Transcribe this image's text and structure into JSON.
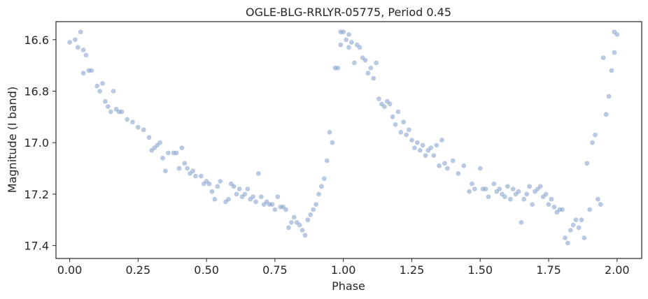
{
  "chart_data": {
    "type": "scatter",
    "title": "OGLE-BLG-RRLYR-05775, Period 0.45",
    "xlabel": "Phase",
    "ylabel": "Magnitude (I band)",
    "xlim": [
      -0.05,
      2.09
    ],
    "ylim": [
      17.45,
      16.53
    ],
    "y_inverted": true,
    "xticks": [
      0.0,
      0.25,
      0.5,
      0.75,
      1.0,
      1.25,
      1.5,
      1.75,
      2.0
    ],
    "xtick_labels": [
      "0.00",
      "0.25",
      "0.50",
      "0.75",
      "1.00",
      "1.25",
      "1.50",
      "1.75",
      "2.00"
    ],
    "yticks": [
      16.6,
      16.8,
      17.0,
      17.2,
      17.4
    ],
    "ytick_labels": [
      "16.6",
      "16.8",
      "17.0",
      "17.2",
      "17.4"
    ],
    "grid": false,
    "marker_color": "#7f9dc9",
    "marker_opacity": 0.55,
    "series": [
      {
        "x": [
          0.0,
          0.02,
          0.03,
          0.04,
          0.05,
          0.05,
          0.06,
          0.07,
          0.08,
          0.1,
          0.11,
          0.12,
          0.13,
          0.14,
          0.15,
          0.16,
          0.17,
          0.18,
          0.19,
          0.21,
          0.23,
          0.25,
          0.27,
          0.29,
          0.3,
          0.31,
          0.32,
          0.33,
          0.34,
          0.35,
          0.36,
          0.38,
          0.39,
          0.4,
          0.41,
          0.42,
          0.43,
          0.44,
          0.45,
          0.46,
          0.48,
          0.49,
          0.5,
          0.51,
          0.52,
          0.53,
          0.54,
          0.55,
          0.57,
          0.58,
          0.59,
          0.6,
          0.61,
          0.62,
          0.63,
          0.64,
          0.65,
          0.66,
          0.67,
          0.68,
          0.69,
          0.7,
          0.71,
          0.72,
          0.73,
          0.74,
          0.75,
          0.76,
          0.77,
          0.78,
          0.79,
          0.8,
          0.81,
          0.82,
          0.83,
          0.84,
          0.85,
          0.86,
          0.87,
          0.88,
          0.89,
          0.9,
          0.91,
          0.92,
          0.93,
          0.94,
          0.95,
          0.96,
          0.97,
          0.98,
          0.99,
          0.99
        ],
        "y": [
          16.61,
          16.6,
          16.63,
          16.57,
          16.64,
          16.73,
          16.66,
          16.72,
          16.72,
          16.78,
          16.8,
          16.77,
          16.84,
          16.86,
          16.88,
          16.8,
          16.87,
          16.88,
          16.88,
          16.91,
          16.92,
          16.94,
          16.95,
          16.98,
          17.03,
          17.02,
          17.01,
          17.0,
          17.06,
          17.11,
          17.04,
          17.04,
          17.04,
          17.1,
          17.02,
          17.08,
          17.1,
          17.12,
          17.11,
          17.13,
          17.13,
          17.16,
          17.15,
          17.16,
          17.19,
          17.22,
          17.17,
          17.15,
          17.23,
          17.22,
          17.16,
          17.17,
          17.2,
          17.18,
          17.21,
          17.2,
          17.18,
          17.22,
          17.21,
          17.23,
          17.12,
          17.21,
          17.24,
          17.23,
          17.24,
          17.24,
          17.26,
          17.21,
          17.25,
          17.25,
          17.26,
          17.33,
          17.31,
          17.29,
          17.31,
          17.32,
          17.34,
          17.36,
          17.3,
          17.28,
          17.26,
          17.24,
          17.2,
          17.17,
          17.14,
          17.07,
          16.96,
          17.0,
          16.71,
          16.71,
          16.62,
          16.57
        ]
      },
      {
        "x": [
          1.0,
          1.01,
          1.02,
          1.02,
          1.03,
          1.04,
          1.05,
          1.06,
          1.07,
          1.08,
          1.09,
          1.1,
          1.11,
          1.12,
          1.13,
          1.14,
          1.15,
          1.16,
          1.17,
          1.18,
          1.19,
          1.2,
          1.21,
          1.22,
          1.23,
          1.24,
          1.25,
          1.26,
          1.27,
          1.28,
          1.29,
          1.3,
          1.31,
          1.32,
          1.33,
          1.34,
          1.35,
          1.36,
          1.37,
          1.38,
          1.4,
          1.42,
          1.44,
          1.46,
          1.47,
          1.48,
          1.5,
          1.51,
          1.52,
          1.53,
          1.55,
          1.56,
          1.57,
          1.58,
          1.59,
          1.6,
          1.61,
          1.62,
          1.63,
          1.64,
          1.65,
          1.66,
          1.67,
          1.68,
          1.69,
          1.7,
          1.71,
          1.72,
          1.73,
          1.74,
          1.75,
          1.76,
          1.77,
          1.78,
          1.79,
          1.8,
          1.81,
          1.82,
          1.83,
          1.84,
          1.85,
          1.86,
          1.87,
          1.88,
          1.89,
          1.9,
          1.91,
          1.92,
          1.93,
          1.94,
          1.95,
          1.96,
          1.97,
          1.98,
          1.99,
          1.99,
          2.0
        ],
        "y": [
          16.57,
          16.6,
          16.63,
          16.58,
          16.61,
          16.69,
          16.62,
          16.63,
          16.67,
          16.68,
          16.73,
          16.71,
          16.75,
          16.69,
          16.83,
          16.85,
          16.86,
          16.84,
          16.85,
          16.9,
          16.93,
          16.88,
          16.96,
          16.92,
          16.97,
          16.95,
          16.99,
          17.02,
          17.0,
          17.03,
          17.01,
          17.05,
          17.03,
          17.02,
          17.05,
          17.01,
          17.09,
          16.99,
          17.08,
          17.1,
          17.07,
          17.12,
          17.09,
          17.19,
          17.16,
          17.18,
          17.1,
          17.18,
          17.18,
          17.21,
          17.16,
          17.19,
          17.18,
          17.2,
          17.21,
          17.17,
          17.22,
          17.18,
          17.2,
          17.19,
          17.31,
          17.22,
          17.2,
          17.17,
          17.24,
          17.19,
          17.18,
          17.17,
          17.21,
          17.2,
          17.24,
          17.22,
          17.25,
          17.27,
          17.26,
          17.26,
          17.37,
          17.39,
          17.34,
          17.32,
          17.3,
          17.33,
          17.3,
          17.37,
          17.08,
          17.26,
          17.0,
          16.97,
          17.22,
          17.24,
          16.67,
          16.89,
          16.82,
          16.72,
          16.57,
          16.65,
          16.58
        ]
      }
    ]
  }
}
